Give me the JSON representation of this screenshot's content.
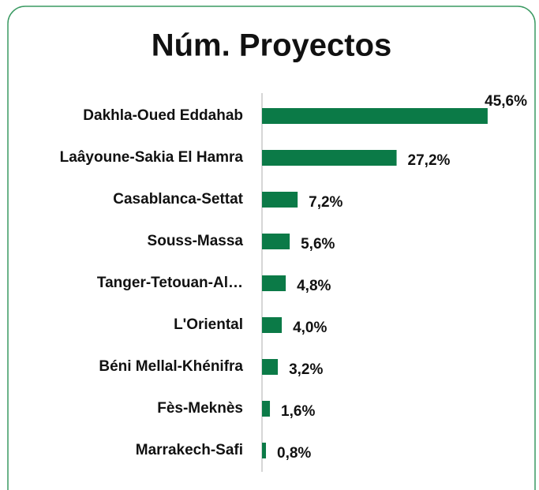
{
  "chart_data": {
    "type": "bar",
    "orientation": "horizontal",
    "title": "Núm. Proyectos",
    "categories": [
      "Dakhla-Oued Eddahab",
      "Laâyoune-Sakia El Hamra",
      "Casablanca-Settat",
      "Souss-Massa",
      "Tanger-Tetouan-Al…",
      "L'Oriental",
      "Béni Mellal-Khénifra",
      "Fès-Meknès",
      "Marrakech-Safi"
    ],
    "values": [
      45.6,
      27.2,
      7.2,
      5.6,
      4.8,
      4.0,
      3.2,
      1.6,
      0.8
    ],
    "value_labels": [
      "45,6%",
      "27,2%",
      "7,2%",
      "5,6%",
      "4,8%",
      "4,0%",
      "3,2%",
      "1,6%",
      "0,8%"
    ],
    "color": "#0b7a47"
  }
}
